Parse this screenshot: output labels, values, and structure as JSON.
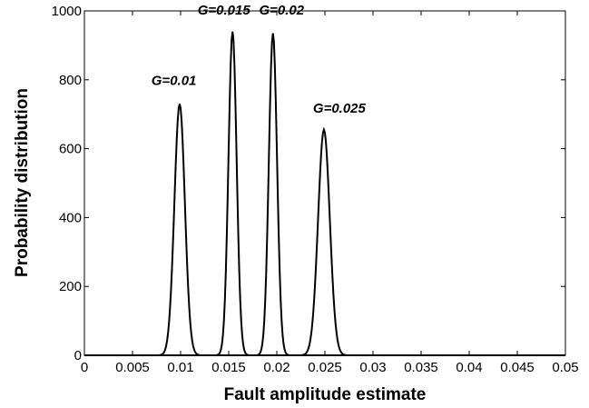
{
  "chart_data": {
    "type": "line",
    "xlabel": "Fault amplitude estimate",
    "ylabel": "Probability distribution",
    "xlim": [
      0,
      0.05
    ],
    "ylim": [
      0,
      1000
    ],
    "xticks": [
      0,
      0.005,
      0.01,
      0.015,
      0.02,
      0.025,
      0.03,
      0.035,
      0.04,
      0.045,
      0.05
    ],
    "xtick_labels": [
      "0",
      "0.005",
      "0.01",
      "0.015",
      "0.02",
      "0.025",
      "0.03",
      "0.035",
      "0.04",
      "0.045",
      "0.05"
    ],
    "yticks": [
      0,
      200,
      400,
      600,
      800,
      1000
    ],
    "ytick_labels": [
      "0",
      "200",
      "400",
      "600",
      "800",
      "1000"
    ],
    "grid": false,
    "line_color": "#000000",
    "series": [
      {
        "name": "G=0.01",
        "distribution": "gaussian",
        "mean": 0.0099,
        "peak": 730
      },
      {
        "name": "G=0.015",
        "distribution": "gaussian",
        "mean": 0.0154,
        "peak": 940
      },
      {
        "name": "G=0.02",
        "distribution": "gaussian",
        "mean": 0.0196,
        "peak": 935
      },
      {
        "name": "G=0.025",
        "distribution": "gaussian",
        "mean": 0.0249,
        "peak": 655
      }
    ],
    "annotations": [
      {
        "text": "G=0.01",
        "x": 0.0093,
        "y": 785
      },
      {
        "text": "G=0.015",
        "x": 0.0145,
        "y": 990
      },
      {
        "text": "G=0.02",
        "x": 0.0205,
        "y": 990
      },
      {
        "text": "G=0.025",
        "x": 0.0265,
        "y": 705
      }
    ]
  }
}
